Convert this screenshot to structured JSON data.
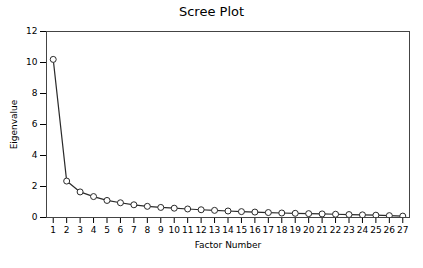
{
  "chart_data": {
    "type": "line",
    "title": "Scree Plot",
    "xlabel": "Factor Number",
    "ylabel": "Eigenvalue",
    "x": [
      1,
      2,
      3,
      4,
      5,
      6,
      7,
      8,
      9,
      10,
      11,
      12,
      13,
      14,
      15,
      16,
      17,
      18,
      19,
      20,
      21,
      22,
      23,
      24,
      25,
      26,
      27
    ],
    "values": [
      10.2,
      2.35,
      1.65,
      1.35,
      1.1,
      0.95,
      0.82,
      0.72,
      0.65,
      0.6,
      0.55,
      0.5,
      0.46,
      0.42,
      0.38,
      0.35,
      0.32,
      0.29,
      0.27,
      0.25,
      0.23,
      0.21,
      0.19,
      0.17,
      0.15,
      0.12,
      0.09
    ],
    "xlim": [
      0.5,
      27.5
    ],
    "xticks": [
      1,
      2,
      3,
      4,
      5,
      6,
      7,
      8,
      9,
      10,
      11,
      12,
      13,
      14,
      15,
      16,
      17,
      18,
      19,
      20,
      21,
      22,
      23,
      24,
      25,
      26,
      27
    ],
    "ylim": [
      0,
      12
    ],
    "yticks": [
      0,
      2,
      4,
      6,
      8,
      10,
      12
    ],
    "color": "#2a2a2a",
    "marker": "circle",
    "line_style": "solid",
    "grid": false
  }
}
